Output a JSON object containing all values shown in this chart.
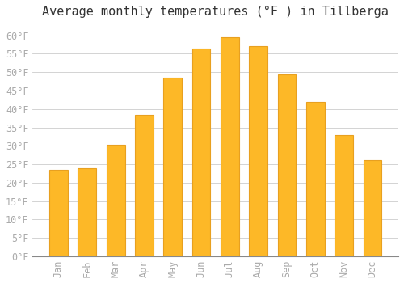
{
  "title": "Average monthly temperatures (°F ) in Tillberga",
  "months": [
    "Jan",
    "Feb",
    "Mar",
    "Apr",
    "May",
    "Jun",
    "Jul",
    "Aug",
    "Sep",
    "Oct",
    "Nov",
    "Dec"
  ],
  "values": [
    23.5,
    23.8,
    30.3,
    38.5,
    48.5,
    56.5,
    59.5,
    57.0,
    49.5,
    42.0,
    33.0,
    26.0
  ],
  "bar_color": "#FDB827",
  "bar_edge_color": "#E8A020",
  "background_color": "#ffffff",
  "grid_color": "#cccccc",
  "ylim": [
    0,
    63
  ],
  "yticks": [
    0,
    5,
    10,
    15,
    20,
    25,
    30,
    35,
    40,
    45,
    50,
    55,
    60
  ],
  "title_fontsize": 11,
  "tick_fontsize": 8.5,
  "tick_color": "#aaaaaa",
  "font_family": "monospace"
}
